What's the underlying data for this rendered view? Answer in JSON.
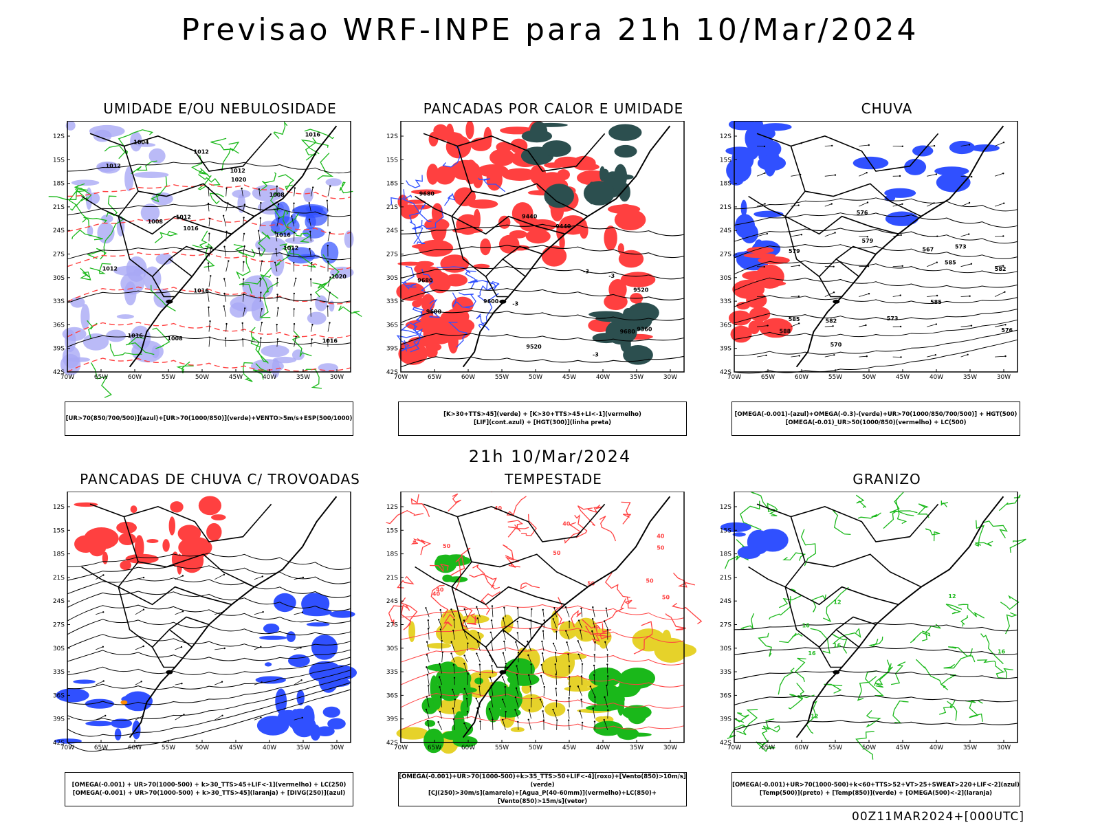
{
  "header": {
    "title": "Previsao WRF-INPE  para 21h 10/Mar/2024"
  },
  "mid_title": "21h 10/Mar/2024",
  "footer": "00Z11MAR2024+[000UTC]",
  "axes": {
    "lat_labels": [
      "12S",
      "15S",
      "18S",
      "21S",
      "24S",
      "27S",
      "30S",
      "33S",
      "36S",
      "39S",
      "42S"
    ],
    "lon_labels": [
      "70W",
      "65W",
      "60W",
      "55W",
      "50W",
      "45W",
      "40W",
      "35W",
      "30W"
    ]
  },
  "colors": {
    "red": "#ff4040",
    "green": "#1ab81a",
    "blue": "#3050ff",
    "lavender": "#a9a9f5",
    "yellow": "#e6d22a",
    "teal": "#2c4f4f"
  },
  "panels": [
    {
      "title": "UMIDADE E/OU NEBULOSIDADE",
      "legend": [
        "[UR>70(850/700/500)](azul)+[UR>70(1000/850)](verde)+VENTO>5m/s+ESP(500/1000)"
      ],
      "labels": [
        "1012",
        "1012",
        "1016",
        "1012",
        "1008",
        "1016",
        "1016",
        "1012",
        "1012",
        "1020",
        "1016",
        "1008",
        "1016",
        "1012",
        "1008",
        "1016",
        "1020",
        "1004"
      ]
    },
    {
      "title": "PANCADAS POR CALOR E UMIDADE",
      "legend": [
        "[K>30+TTS>45](verde) + [K>30+TTS>45+LI<-1](vermelho)",
        "[LIF](cont.azul) + [HGT(300)](linha preta)"
      ],
      "labels": [
        "9680",
        "9680",
        "9680",
        "9600",
        "9600",
        "9520",
        "9520",
        "9440",
        "9440",
        "9360",
        "-3",
        "-3",
        "-3",
        "-3"
      ]
    },
    {
      "title": "CHUVA",
      "legend": [
        "[OMEGA(-0.001)-(azul)+OMEGA(-0.3)-(verde)+UR>70(1000/850/700/500)] + HGT(500)",
        "[OMEGA(-0.01)_UR>50(1000/850)(vermelho) + LC(500)"
      ],
      "labels": [
        "585",
        "585",
        "582",
        "579",
        "576",
        "573",
        "570",
        "567",
        "588",
        "585",
        "582",
        "579",
        "576",
        "573"
      ]
    },
    {
      "title": "PANCADAS DE CHUVA C/ TROVOADAS",
      "legend": [
        "[OMEGA(-0.001) + UR>70(1000-500) + k>30_TTS>45+LIF<-1](vermelho) + LC(250)",
        "[OMEGA(-0.001) + UR>70(1000-500) + k>30_TTS>45](laranja) + [DIVG(250)](azul)"
      ],
      "labels": []
    },
    {
      "title": "TEMPESTADE",
      "legend": [
        "[OMEGA(-0.001)+UR>70(1000-500)+k>35_TTS>50+LIF<-4](roxo)+[Vento(850)>10m/s](verde)",
        "[CJ(250)>30m/s](amarelo)+[Agua_P(40-60mm)](vermelho)+LC(850)+[Vento(850)>15m/s](vetor)"
      ],
      "labels": [
        "40",
        "50",
        "50",
        "40",
        "50",
        "40",
        "50",
        "40",
        "50",
        "50",
        "40"
      ]
    },
    {
      "title": "GRANIZO",
      "legend": [
        "[OMEGA(-0.001)+UR>70(1000-500)+k<60+TTS>52+VT>25+SWEAT>220+LIF<-2](azul)",
        "[Temp(500)](preto) + [Temp(850)](verde) + [OMEGA(500)<-2](laranja)"
      ],
      "labels": [
        "16",
        "12",
        "12",
        "16",
        "16",
        "12",
        "16"
      ]
    }
  ]
}
